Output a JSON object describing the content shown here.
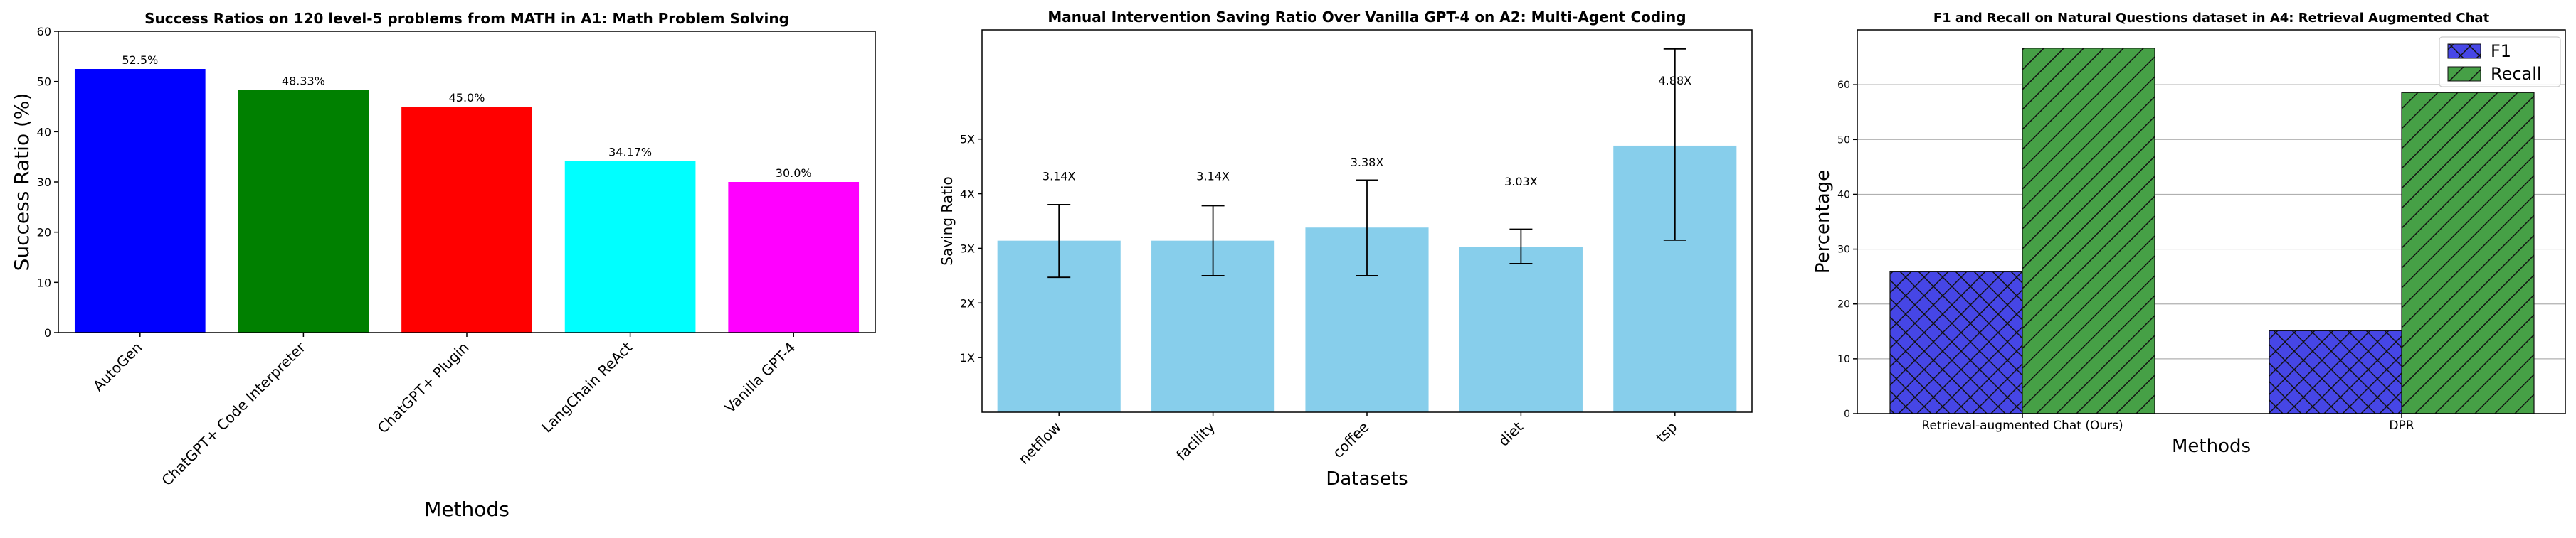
{
  "chart_data": [
    {
      "type": "bar",
      "title": "Success Ratios on 120 level-5 problems from MATH in A1: Math Problem Solving",
      "xlabel": "Methods",
      "ylabel": "Success Ratio (%)",
      "ylim": [
        0,
        60
      ],
      "yticks": [
        0,
        10,
        20,
        30,
        40,
        50,
        60
      ],
      "categories": [
        "AutoGen",
        "ChatGPT+ Code Interpreter",
        "ChatGPT+ Plugin",
        "LangChain ReAct",
        "Vanilla GPT-4"
      ],
      "values": [
        52.5,
        48.33,
        45.0,
        34.17,
        30.0
      ],
      "data_labels": [
        "52.5%",
        "48.33%",
        "45.0%",
        "34.17%",
        "30.0%"
      ],
      "colors": [
        "#0000ff",
        "#008000",
        "#ff0000",
        "#00ffff",
        "#ff00ff"
      ],
      "grid": false
    },
    {
      "type": "bar",
      "title": "Manual Intervention Saving Ratio Over Vanilla GPT-4 on A2: Multi-Agent Coding",
      "xlabel": "Datasets",
      "ylabel": "Saving Ratio",
      "ylim": [
        0,
        7
      ],
      "yticks": [
        1,
        2,
        3,
        4,
        5
      ],
      "ytick_labels": [
        "1X",
        "2X",
        "3X",
        "4X",
        "5X"
      ],
      "categories": [
        "netflow",
        "facility",
        "coffee",
        "diet",
        "tsp"
      ],
      "values": [
        3.14,
        3.14,
        3.38,
        3.03,
        4.88
      ],
      "error_low": [
        2.47,
        2.5,
        2.5,
        2.72,
        3.15
      ],
      "error_high": [
        3.8,
        3.78,
        4.25,
        3.35,
        6.65
      ],
      "data_labels": [
        "3.14X",
        "3.14X",
        "3.38X",
        "3.03X",
        "4.88X"
      ],
      "label_values": [
        4.25,
        4.25,
        4.5,
        4.15,
        6.0
      ],
      "colors": [
        "#87ceeb"
      ],
      "grid": false
    },
    {
      "type": "bar",
      "title": "F1 and Recall on Natural Questions dataset in A4: Retrieval Augmented Chat",
      "xlabel": "Methods",
      "ylabel": "Percentage",
      "ylim": [
        0,
        70
      ],
      "yticks": [
        0,
        10,
        20,
        30,
        40,
        50,
        60
      ],
      "categories": [
        "Retrieval-augmented Chat (Ours)",
        "DPR"
      ],
      "series": [
        {
          "name": "F1",
          "values": [
            25.88,
            15.12
          ],
          "color": "#4646e6",
          "hatch": "cross"
        },
        {
          "name": "Recall",
          "values": [
            66.65,
            58.56
          ],
          "color": "#46a046",
          "hatch": "diagonal"
        }
      ],
      "legend": "top-right",
      "grid": true
    }
  ]
}
